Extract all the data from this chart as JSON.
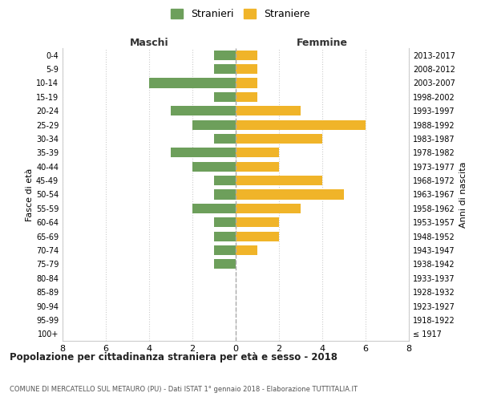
{
  "age_groups": [
    "100+",
    "95-99",
    "90-94",
    "85-89",
    "80-84",
    "75-79",
    "70-74",
    "65-69",
    "60-64",
    "55-59",
    "50-54",
    "45-49",
    "40-44",
    "35-39",
    "30-34",
    "25-29",
    "20-24",
    "15-19",
    "10-14",
    "5-9",
    "0-4"
  ],
  "birth_years": [
    "≤ 1917",
    "1918-1922",
    "1923-1927",
    "1928-1932",
    "1933-1937",
    "1938-1942",
    "1943-1947",
    "1948-1952",
    "1953-1957",
    "1958-1962",
    "1963-1967",
    "1968-1972",
    "1973-1977",
    "1978-1982",
    "1983-1987",
    "1988-1992",
    "1993-1997",
    "1998-2002",
    "2003-2007",
    "2008-2012",
    "2013-2017"
  ],
  "maschi": [
    0,
    0,
    0,
    0,
    0,
    1,
    1,
    1,
    1,
    2,
    1,
    1,
    2,
    3,
    1,
    2,
    3,
    1,
    4,
    1,
    1
  ],
  "femmine": [
    0,
    0,
    0,
    0,
    0,
    0,
    1,
    2,
    2,
    3,
    5,
    4,
    2,
    2,
    4,
    6,
    3,
    1,
    1,
    1,
    1
  ],
  "maschi_color": "#6d9f5b",
  "femmine_color": "#f0b429",
  "title_main": "Popolazione per cittadinanza straniera per età e sesso - 2018",
  "title_sub": "COMUNE DI MERCATELLO SUL METAURO (PU) - Dati ISTAT 1° gennaio 2018 - Elaborazione TUTTITALIA.IT",
  "xlabel_left": "Maschi",
  "xlabel_right": "Femmine",
  "ylabel_left": "Fasce di età",
  "ylabel_right": "Anni di nascita",
  "legend_maschi": "Stranieri",
  "legend_femmine": "Straniere",
  "xlim": 8,
  "background_color": "#ffffff",
  "grid_color": "#cccccc"
}
